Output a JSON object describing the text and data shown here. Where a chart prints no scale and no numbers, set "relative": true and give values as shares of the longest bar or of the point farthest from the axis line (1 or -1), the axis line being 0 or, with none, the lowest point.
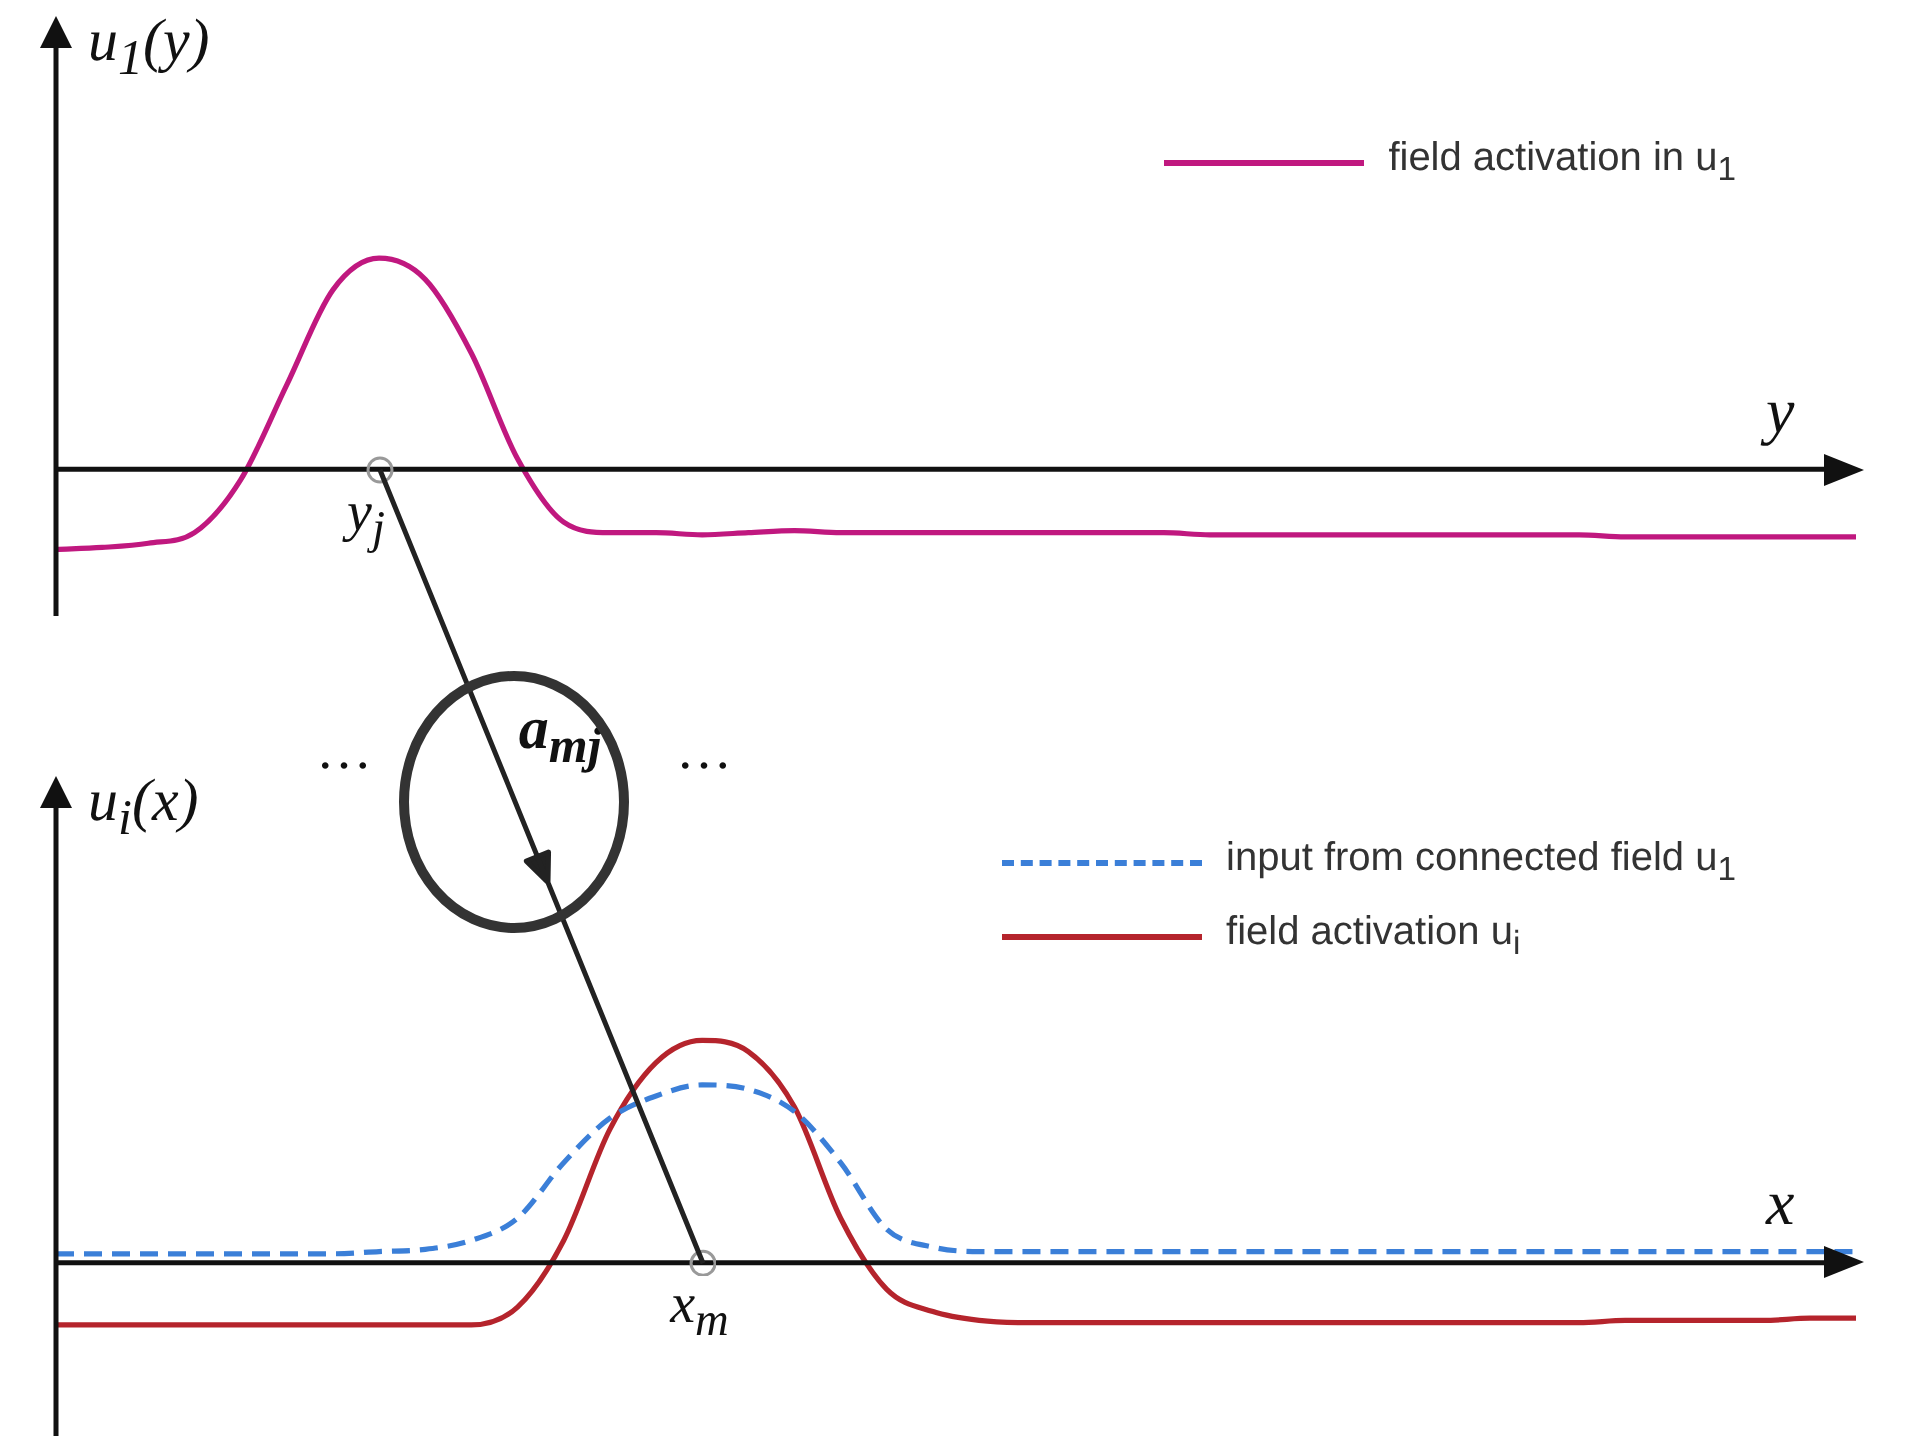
{
  "chart_data": [
    {
      "type": "line",
      "relative": true,
      "ylabel": "u$_{1}$(y)",
      "xlabel": "y",
      "legend": "top right",
      "marker": "none",
      "categories": [
        null,
        null,
        null,
        null,
        null,
        null,
        null,
        null,
        null,
        null,
        null,
        null,
        null,
        null,
        null,
        null,
        null,
        null,
        null,
        null,
        null,
        null,
        null,
        null,
        null,
        null,
        null,
        null,
        null,
        null,
        null,
        null,
        null,
        null,
        null,
        null,
        null,
        null,
        null,
        null
      ],
      "series": [
        {
          "name": "field activation in u$_{1}$",
          "color": "#c0187f",
          "line_style": "solid",
          "values": [
            -0.38,
            -0.37,
            -0.35,
            -0.3,
            -0.05,
            0.4,
            0.85,
            1.0,
            0.9,
            0.55,
            0.05,
            -0.25,
            -0.3,
            -0.3,
            -0.31,
            -0.3,
            -0.29,
            -0.3,
            -0.3,
            -0.3,
            -0.3,
            -0.3,
            -0.3,
            -0.3,
            -0.3,
            -0.31,
            -0.31,
            -0.31,
            -0.31,
            -0.31,
            -0.31,
            -0.31,
            -0.31,
            -0.31,
            -0.32,
            -0.32,
            -0.32,
            -0.32,
            -0.32,
            -0.32
          ]
        }
      ],
      "annotations": [
        "y$_{j}$"
      ]
    },
    {
      "type": "line",
      "relative": true,
      "ylabel": "u$_{i}$(x)",
      "xlabel": "x",
      "legend": "top right",
      "marker": "none",
      "categories": [
        null,
        null,
        null,
        null,
        null,
        null,
        null,
        null,
        null,
        null,
        null,
        null,
        null,
        null,
        null,
        null,
        null,
        null,
        null,
        null,
        null,
        null,
        null,
        null,
        null,
        null,
        null,
        null,
        null,
        null,
        null,
        null,
        null,
        null,
        null,
        null,
        null,
        null,
        null,
        null
      ],
      "series": [
        {
          "name": "input from connected field u$_{1}$",
          "color": "#3b7fd8",
          "line_style": "dashed",
          "values": [
            0.04,
            0.04,
            0.04,
            0.04,
            0.04,
            0.04,
            0.04,
            0.05,
            0.06,
            0.1,
            0.2,
            0.45,
            0.65,
            0.75,
            0.8,
            0.78,
            0.68,
            0.45,
            0.15,
            0.07,
            0.05,
            0.05,
            0.05,
            0.05,
            0.05,
            0.05,
            0.05,
            0.05,
            0.05,
            0.05,
            0.05,
            0.05,
            0.05,
            0.05,
            0.05,
            0.05,
            0.05,
            0.05,
            0.05,
            0.05
          ]
        },
        {
          "name": "field activation  u$_{i}$",
          "color": "#b5242c",
          "line_style": "solid",
          "values": [
            -0.28,
            -0.28,
            -0.28,
            -0.28,
            -0.28,
            -0.28,
            -0.28,
            -0.28,
            -0.28,
            -0.28,
            -0.2,
            0.1,
            0.6,
            0.9,
            1.0,
            0.95,
            0.7,
            0.2,
            -0.12,
            -0.22,
            -0.26,
            -0.27,
            -0.27,
            -0.27,
            -0.27,
            -0.27,
            -0.27,
            -0.27,
            -0.27,
            -0.27,
            -0.27,
            -0.27,
            -0.27,
            -0.27,
            -0.26,
            -0.26,
            -0.26,
            -0.26,
            -0.25,
            -0.25
          ]
        }
      ],
      "annotations": [
        "x$_{m}$",
        "…",
        "a$_{mj}$",
        "…"
      ]
    }
  ]
}
